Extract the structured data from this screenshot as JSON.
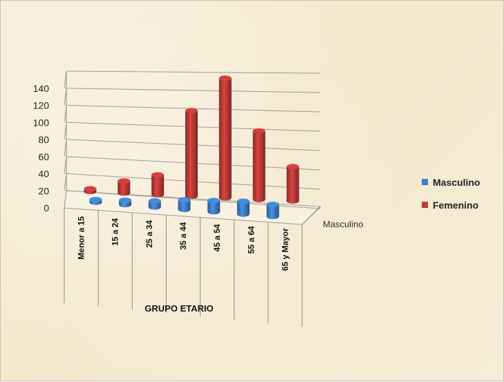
{
  "chart_data": {
    "type": "bar",
    "subtype": "3d-clustered-depth",
    "categories": [
      "Menor a 15",
      "15 a 24",
      "25 a 34",
      "35 a 44",
      "45 a 54",
      "55 a 64",
      "65 y Mayor"
    ],
    "series": [
      {
        "name": "Masculino",
        "values": [
          3,
          5,
          7,
          11,
          13,
          15,
          14
        ],
        "color": "#3f7fc9"
      },
      {
        "name": "Femenino",
        "values": [
          3,
          14,
          23,
          100,
          140,
          80,
          40
        ],
        "color": "#c03a37"
      }
    ],
    "xlabel": "GRUPO ETARIO",
    "ylabel": "",
    "ylim": [
      0,
      140
    ],
    "yticks": [
      0,
      20,
      40,
      60,
      80,
      100,
      120,
      140
    ],
    "depth_axis_label": "Masculino",
    "grid": true,
    "legend_position": "right"
  }
}
